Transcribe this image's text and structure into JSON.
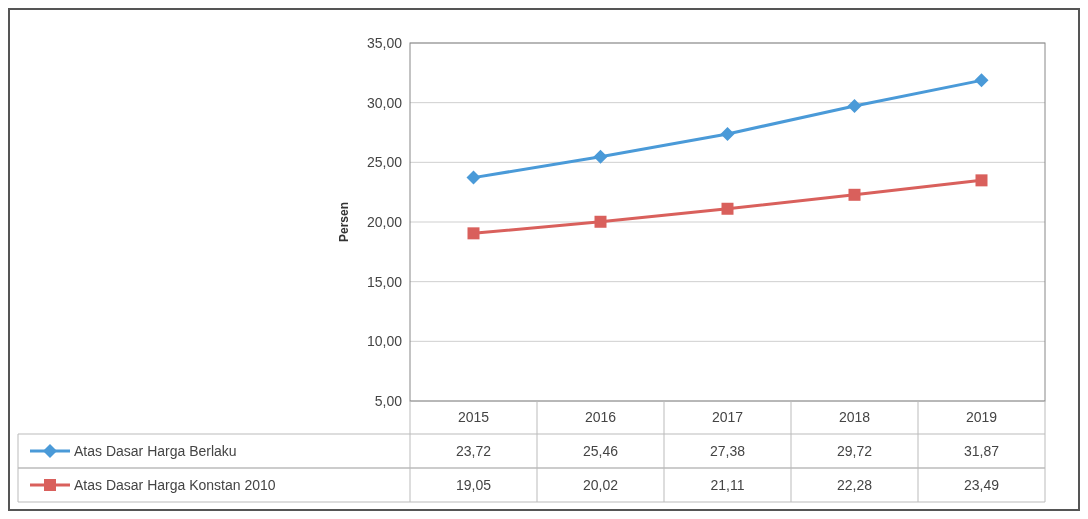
{
  "chart_data": {
    "type": "line",
    "ylabel": "Persen",
    "categories": [
      "2015",
      "2016",
      "2017",
      "2018",
      "2019"
    ],
    "series": [
      {
        "name": "Atas Dasar Harga Berlaku",
        "color": "#4a9ad8",
        "marker": "diamond",
        "values": [
          23.72,
          25.46,
          27.38,
          29.72,
          31.87
        ],
        "value_labels": [
          "23,72",
          "25,46",
          "27,38",
          "29,72",
          "31,87"
        ]
      },
      {
        "name": "Atas Dasar Harga Konstan 2010",
        "color": "#d9605c",
        "marker": "square",
        "values": [
          19.05,
          20.02,
          21.11,
          22.28,
          23.49
        ],
        "value_labels": [
          "19,05",
          "20,02",
          "21,11",
          "22,28",
          "23,49"
        ]
      }
    ],
    "ylim": [
      5,
      35
    ],
    "yticks": [
      {
        "value": 5,
        "label": "5,00"
      },
      {
        "value": 10,
        "label": "10,00"
      },
      {
        "value": 15,
        "label": "15,00"
      },
      {
        "value": 20,
        "label": "20,00"
      },
      {
        "value": 25,
        "label": "25,00"
      },
      {
        "value": 30,
        "label": "30,00"
      },
      {
        "value": 35,
        "label": "35,00"
      }
    ],
    "grid": "y",
    "legend": "bottom"
  }
}
